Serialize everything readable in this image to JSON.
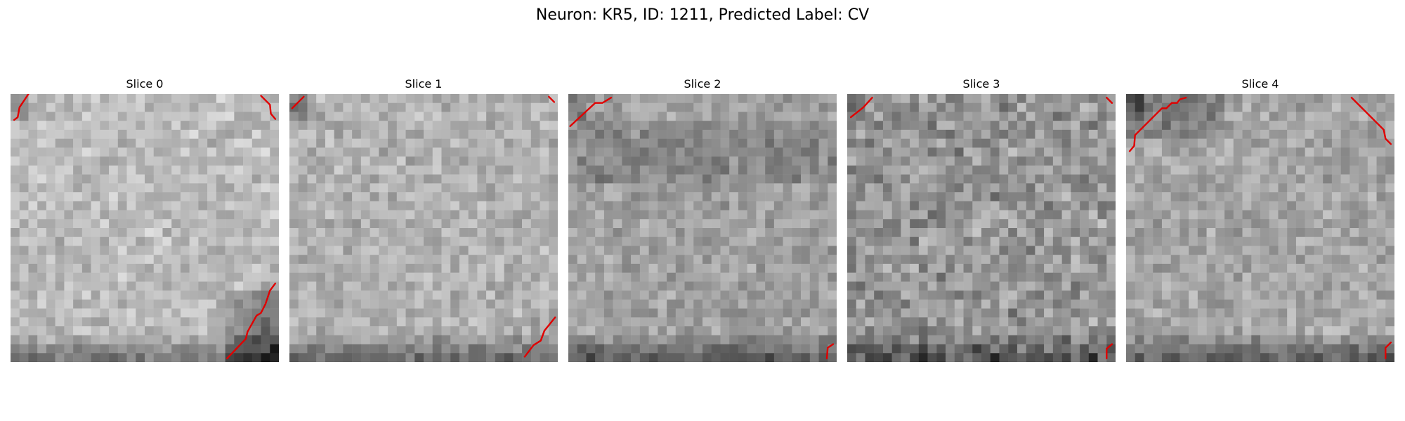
{
  "figure": {
    "title": "Neuron: KR5, ID: 1211, Predicted Label: CV"
  },
  "panels": [
    {
      "title": "Slice 0",
      "base_gray": 188,
      "contours": 3
    },
    {
      "title": "Slice 1",
      "base_gray": 176,
      "contours": 3
    },
    {
      "title": "Slice 2",
      "base_gray": 160,
      "contours": 2
    },
    {
      "title": "Slice 3",
      "base_gray": 150,
      "contours": 3
    },
    {
      "title": "Slice 4",
      "base_gray": 165,
      "contours": 3
    }
  ],
  "colors": {
    "contour": "#e00000",
    "background": "#ffffff"
  }
}
